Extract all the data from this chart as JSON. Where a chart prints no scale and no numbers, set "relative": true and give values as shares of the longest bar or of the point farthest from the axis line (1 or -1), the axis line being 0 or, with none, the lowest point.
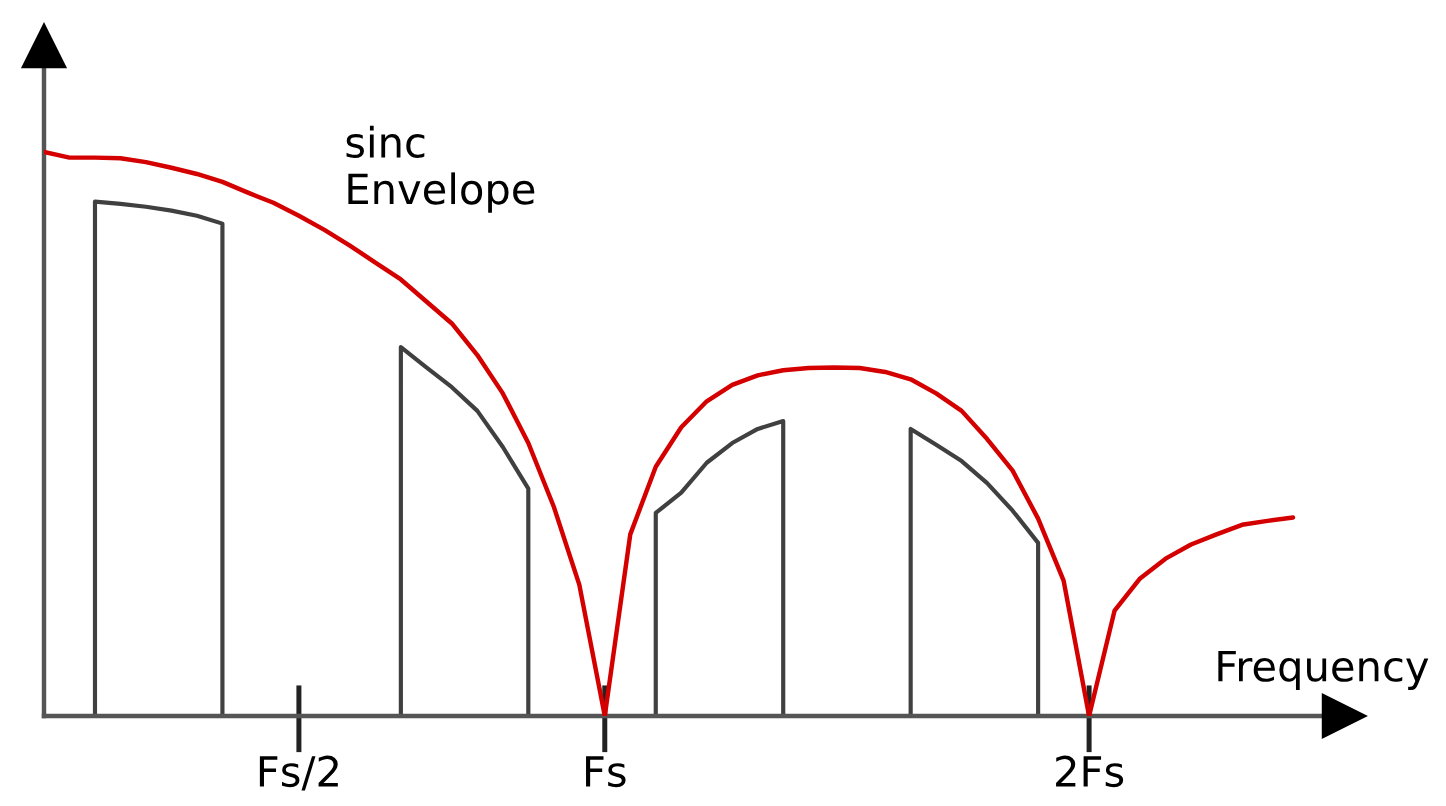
{
  "chart_data": {
    "type": "line",
    "relative": true,
    "xlabel": "Frequency",
    "line_style": "solid",
    "categories": [
      null,
      null,
      null,
      null,
      null,
      null,
      null,
      null,
      null,
      null,
      "Fs/2",
      null,
      null,
      null,
      null,
      null,
      null,
      null,
      null,
      null,
      null,
      null,
      "Fs",
      null,
      null,
      null,
      null,
      null,
      null,
      null,
      null,
      null,
      null,
      null,
      null,
      null,
      null,
      null,
      null,
      null,
      null,
      "2Fs",
      null,
      null,
      null,
      null,
      null,
      null,
      null,
      null,
      null,
      null
    ],
    "series": [
      {
        "name": "sinc\nEnvelope",
        "color": "#d40000",
        "values": [
          1.0,
          0.99,
          0.99,
          0.989,
          0.982,
          0.972,
          0.961,
          0.947,
          0.928,
          0.91,
          0.887,
          0.862,
          0.834,
          0.804,
          0.774,
          0.735,
          0.696,
          0.64,
          0.572,
          0.484,
          0.371,
          0.233,
          0,
          0.322,
          0.442,
          0.512,
          0.558,
          0.587,
          0.604,
          0.613,
          0.617,
          0.618,
          0.617,
          0.61,
          0.597,
          0.572,
          0.541,
          0.491,
          0.435,
          0.35,
          0.24,
          0,
          0.187,
          0.244,
          0.279,
          0.304,
          0.322,
          0.339,
          0.346,
          0.352,
          null,
          null
        ]
      },
      {
        "type": "area",
        "color": "#404040",
        "values": [
          null,
          null,
          0.912,
          0.908,
          0.903,
          0.896,
          0.887,
          0.873,
          null,
          null,
          null,
          null,
          null,
          null,
          null,
          null,
          null,
          null,
          null,
          null,
          null,
          null,
          null,
          null,
          null,
          null,
          null,
          null,
          null,
          null,
          null,
          null,
          null,
          null,
          null,
          null,
          null,
          null,
          null,
          null,
          null,
          null,
          null,
          null,
          null,
          null,
          null,
          null,
          null,
          null,
          null,
          null
        ]
      },
      {
        "type": "area",
        "color": "#404040",
        "values": [
          null,
          null,
          null,
          null,
          null,
          null,
          null,
          null,
          null,
          null,
          null,
          null,
          null,
          null,
          0.654,
          0.618,
          0.583,
          0.541,
          0.477,
          0.403,
          null,
          null,
          null,
          null,
          null,
          null,
          null,
          null,
          null,
          null,
          null,
          null,
          null,
          null,
          null,
          null,
          null,
          null,
          null,
          null,
          null,
          null,
          null,
          null,
          null,
          null,
          null,
          null,
          null,
          null,
          null,
          null
        ]
      },
      {
        "type": "area",
        "color": "#404040",
        "values": [
          null,
          null,
          null,
          null,
          null,
          null,
          null,
          null,
          null,
          null,
          null,
          null,
          null,
          null,
          null,
          null,
          null,
          null,
          null,
          null,
          null,
          null,
          null,
          null,
          0.36,
          0.396,
          0.449,
          0.484,
          0.509,
          0.523,
          null,
          null,
          null,
          null,
          null,
          null,
          null,
          null,
          null,
          null,
          null,
          null,
          null,
          null,
          null,
          null,
          null,
          null,
          null,
          null,
          null,
          null
        ]
      },
      {
        "type": "area",
        "color": "#404040",
        "values": [
          null,
          null,
          null,
          null,
          null,
          null,
          null,
          null,
          null,
          null,
          null,
          null,
          null,
          null,
          null,
          null,
          null,
          null,
          null,
          null,
          null,
          null,
          null,
          null,
          null,
          null,
          null,
          null,
          null,
          null,
          null,
          null,
          null,
          null,
          0.509,
          0.481,
          0.452,
          0.413,
          0.364,
          0.307,
          null,
          null,
          null,
          null,
          null,
          null,
          null,
          null,
          null,
          null,
          null,
          null
        ]
      }
    ]
  }
}
